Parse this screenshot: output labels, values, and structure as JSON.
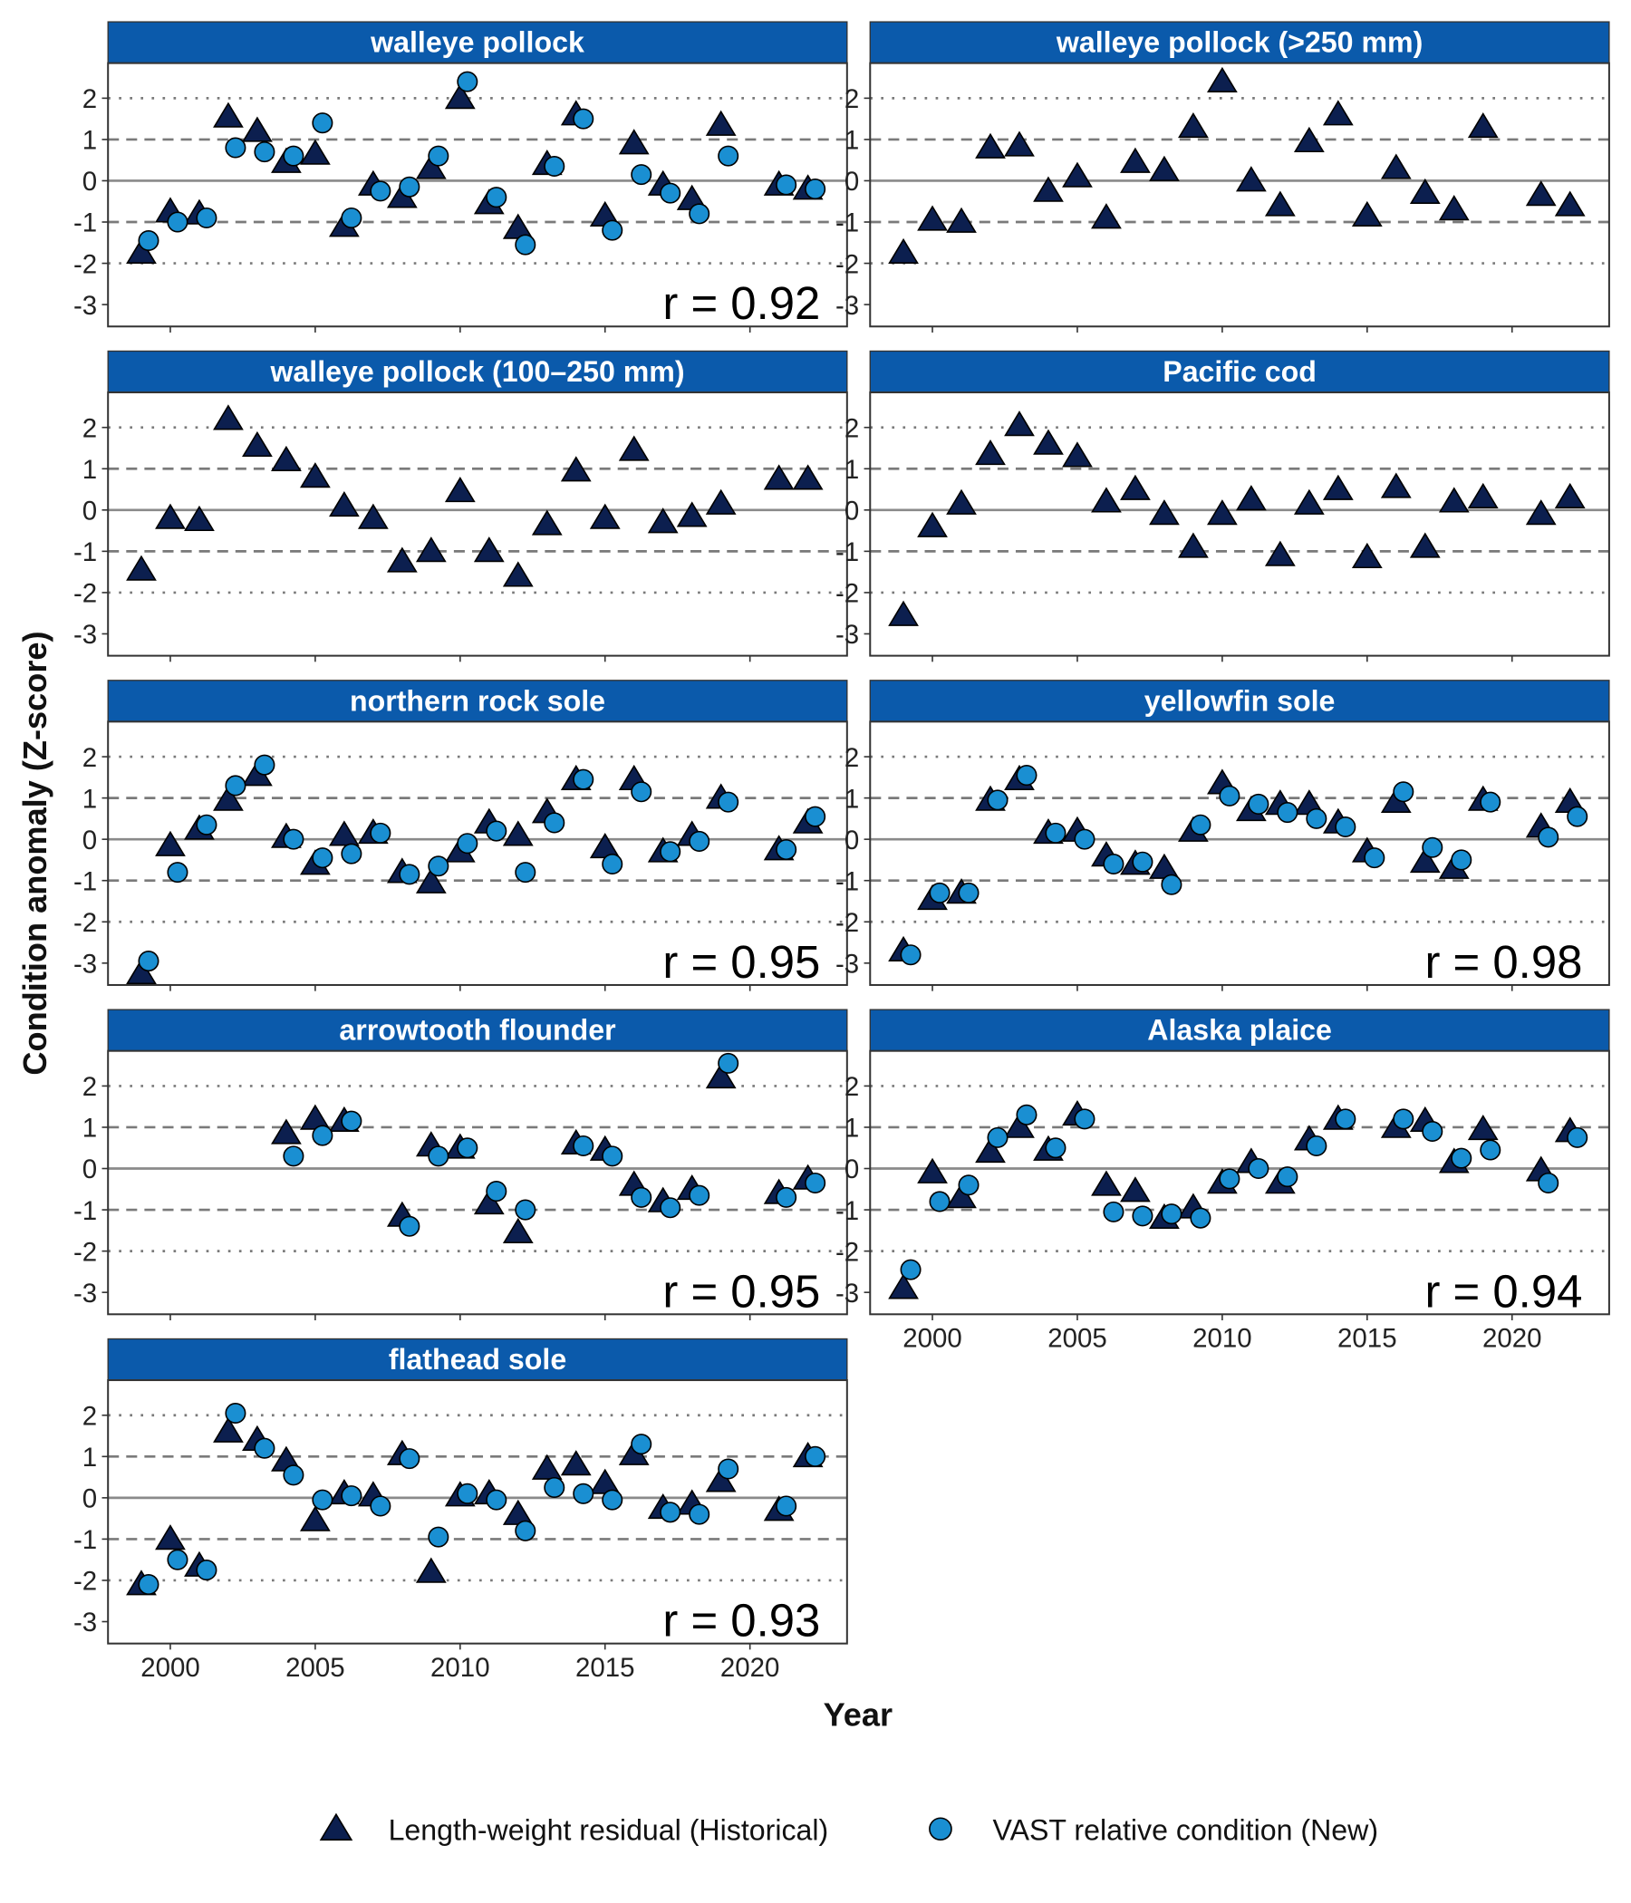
{
  "shared": {
    "ylabel": "Condition anomaly (Z-score)",
    "xlabel": "Year",
    "xlim": [
      1997.85,
      2023.35
    ],
    "xticks": [
      2000,
      2005,
      2010,
      2015,
      2020
    ],
    "ylim": [
      -3.53,
      2.85
    ],
    "yticks": [
      -3,
      -2,
      -1,
      0,
      1,
      2
    ],
    "reference_lines": [
      {
        "value": 0,
        "style": "solid"
      },
      {
        "value": 1,
        "style": "dashed"
      },
      {
        "value": -1,
        "style": "dashed"
      },
      {
        "value": 2,
        "style": "dotted"
      },
      {
        "value": -2,
        "style": "dotted"
      }
    ],
    "legend_position": "bottom",
    "strip_color": "#0b5aab"
  },
  "chart_data": [
    {
      "type": "scatter",
      "title": "walleye pollock",
      "annotation": "r = 0.92",
      "x": [
        1999,
        2000,
        2001,
        2002,
        2003,
        2004,
        2005,
        2006,
        2007,
        2008,
        2009,
        2010,
        2011,
        2012,
        2013,
        2014,
        2015,
        2016,
        2017,
        2018,
        2019,
        2021,
        2022
      ],
      "series": [
        {
          "name": "Length-weight residual (Historical)",
          "marker": "triangle",
          "color": "#0c1f4f",
          "values": [
            -1.75,
            -0.75,
            -0.8,
            1.55,
            1.2,
            0.45,
            0.65,
            -1.1,
            -0.1,
            -0.4,
            0.3,
            2.0,
            -0.55,
            -1.15,
            0.4,
            1.6,
            -0.85,
            0.9,
            -0.1,
            -0.45,
            1.35,
            -0.1,
            -0.2
          ]
        },
        {
          "name": "VAST relative condition (New)",
          "marker": "circle",
          "color": "#1a8fd2",
          "values": [
            -1.45,
            -1.0,
            -0.9,
            0.8,
            0.7,
            0.6,
            1.4,
            -0.9,
            -0.25,
            -0.15,
            0.6,
            2.4,
            -0.4,
            -1.55,
            0.35,
            1.5,
            -1.2,
            0.15,
            -0.3,
            -0.8,
            0.6,
            -0.1,
            -0.2
          ]
        }
      ]
    },
    {
      "type": "scatter",
      "title": "walleye pollock (>250 mm)",
      "x": [
        1999,
        2000,
        2001,
        2002,
        2003,
        2004,
        2005,
        2006,
        2007,
        2008,
        2009,
        2010,
        2011,
        2012,
        2013,
        2014,
        2015,
        2016,
        2017,
        2018,
        2019,
        2021,
        2022
      ],
      "series": [
        {
          "name": "Length-weight residual (Historical)",
          "marker": "triangle",
          "color": "#0c1f4f",
          "values": [
            -1.75,
            -0.95,
            -1.0,
            0.8,
            0.85,
            -0.25,
            0.1,
            -0.9,
            0.45,
            0.25,
            1.3,
            2.4,
            0,
            -0.6,
            0.95,
            1.6,
            -0.85,
            0.3,
            -0.3,
            -0.7,
            1.3,
            -0.35,
            -0.6
          ]
        }
      ]
    },
    {
      "type": "scatter",
      "title": "walleye pollock (100–250 mm)",
      "x": [
        1999,
        2000,
        2001,
        2002,
        2003,
        2004,
        2005,
        2006,
        2007,
        2008,
        2009,
        2010,
        2011,
        2012,
        2013,
        2014,
        2015,
        2016,
        2017,
        2018,
        2019,
        2021,
        2022
      ],
      "series": [
        {
          "name": "Length-weight residual (Historical)",
          "marker": "triangle",
          "color": "#0c1f4f",
          "values": [
            -1.45,
            -0.2,
            -0.25,
            2.2,
            1.55,
            1.2,
            0.8,
            0.1,
            -0.2,
            -1.25,
            -1.0,
            0.45,
            -1.0,
            -1.6,
            -0.35,
            0.95,
            -0.2,
            1.45,
            -0.3,
            -0.15,
            0.15,
            0.75,
            0.75
          ]
        }
      ]
    },
    {
      "type": "scatter",
      "title": "Pacific cod",
      "x": [
        1999,
        2000,
        2001,
        2002,
        2003,
        2004,
        2005,
        2006,
        2007,
        2008,
        2009,
        2010,
        2011,
        2012,
        2013,
        2014,
        2015,
        2016,
        2017,
        2018,
        2019,
        2021,
        2022
      ],
      "series": [
        {
          "name": "Length-weight residual (Historical)",
          "marker": "triangle",
          "color": "#0c1f4f",
          "values": [
            -2.55,
            -0.4,
            0.15,
            1.35,
            2.05,
            1.6,
            1.3,
            0.2,
            0.5,
            -0.1,
            -0.9,
            -0.1,
            0.25,
            -1.1,
            0.15,
            0.5,
            -1.15,
            0.55,
            -0.9,
            0.2,
            0.3,
            -0.1,
            0.3
          ]
        }
      ]
    },
    {
      "type": "scatter",
      "title": "northern rock sole",
      "annotation": "r = 0.95",
      "x": [
        1999,
        2000,
        2001,
        2002,
        2003,
        2004,
        2005,
        2006,
        2007,
        2008,
        2009,
        2010,
        2011,
        2012,
        2013,
        2014,
        2015,
        2016,
        2017,
        2018,
        2019,
        2021,
        2022
      ],
      "series": [
        {
          "name": "Length-weight residual (Historical)",
          "marker": "triangle",
          "color": "#0c1f4f",
          "values": [
            -3.25,
            -0.15,
            0.25,
            0.95,
            1.55,
            0.05,
            -0.6,
            0.1,
            0.15,
            -0.8,
            -1.05,
            -0.3,
            0.4,
            0.1,
            0.65,
            1.45,
            -0.2,
            1.45,
            -0.3,
            0.1,
            1.0,
            -0.25,
            0.4
          ]
        },
        {
          "name": "VAST relative condition (New)",
          "marker": "circle",
          "color": "#1a8fd2",
          "values": [
            -2.95,
            -0.8,
            0.35,
            1.3,
            1.8,
            0,
            -0.45,
            -0.35,
            0.15,
            -0.85,
            -0.65,
            -0.1,
            0.2,
            -0.8,
            0.4,
            1.45,
            -0.6,
            1.15,
            -0.3,
            -0.05,
            0.9,
            -0.25,
            0.55
          ]
        }
      ]
    },
    {
      "type": "scatter",
      "title": "yellowfin sole",
      "annotation": "r = 0.98",
      "x": [
        1999,
        2000,
        2001,
        2002,
        2003,
        2004,
        2005,
        2006,
        2007,
        2008,
        2009,
        2010,
        2011,
        2012,
        2013,
        2014,
        2015,
        2016,
        2017,
        2018,
        2019,
        2021,
        2022
      ],
      "series": [
        {
          "name": "Length-weight residual (Historical)",
          "marker": "triangle",
          "color": "#0c1f4f",
          "values": [
            -2.7,
            -1.45,
            -1.3,
            0.95,
            1.45,
            0.15,
            0.2,
            -0.4,
            -0.6,
            -0.7,
            0.2,
            1.35,
            0.7,
            0.85,
            0.85,
            0.4,
            -0.3,
            0.9,
            -0.55,
            -0.7,
            0.95,
            0.3,
            0.9
          ]
        },
        {
          "name": "VAST relative condition (New)",
          "marker": "circle",
          "color": "#1a8fd2",
          "values": [
            -2.8,
            -1.3,
            -1.3,
            0.95,
            1.55,
            0.15,
            0,
            -0.6,
            -0.55,
            -1.1,
            0.35,
            1.05,
            0.85,
            0.65,
            0.5,
            0.3,
            -0.45,
            1.15,
            -0.2,
            -0.5,
            0.9,
            0.05,
            0.55
          ]
        }
      ]
    },
    {
      "type": "scatter",
      "title": "arrowtooth flounder",
      "annotation": "r = 0.95",
      "x": [
        2004,
        2005,
        2006,
        2008,
        2009,
        2010,
        2011,
        2012,
        2014,
        2015,
        2016,
        2017,
        2018,
        2019,
        2021,
        2022
      ],
      "series": [
        {
          "name": "Length-weight residual (Historical)",
          "marker": "triangle",
          "color": "#0c1f4f",
          "values": [
            0.85,
            1.2,
            1.15,
            -1.15,
            0.55,
            0.5,
            -0.85,
            -1.55,
            0.6,
            0.45,
            -0.4,
            -0.8,
            -0.5,
            2.2,
            -0.6,
            -0.25
          ]
        },
        {
          "name": "VAST relative condition (New)",
          "marker": "circle",
          "color": "#1a8fd2",
          "values": [
            0.3,
            0.8,
            1.15,
            -1.4,
            0.3,
            0.5,
            -0.55,
            -1.0,
            0.55,
            0.3,
            -0.7,
            -0.95,
            -0.65,
            2.55,
            -0.7,
            -0.35
          ]
        }
      ]
    },
    {
      "type": "scatter",
      "title": "Alaska plaice",
      "annotation": "r = 0.94",
      "x": [
        1999,
        2000,
        2001,
        2002,
        2003,
        2004,
        2005,
        2006,
        2007,
        2008,
        2009,
        2010,
        2011,
        2012,
        2013,
        2014,
        2016,
        2017,
        2018,
        2019,
        2021,
        2022
      ],
      "series": [
        {
          "name": "Length-weight residual (Historical)",
          "marker": "triangle",
          "color": "#0c1f4f",
          "values": [
            -2.9,
            -0.1,
            -0.7,
            0.4,
            1.0,
            0.45,
            1.3,
            -0.4,
            -0.55,
            -1.2,
            -0.95,
            -0.35,
            0.15,
            -0.35,
            0.7,
            1.2,
            1.0,
            1.15,
            0.15,
            0.95,
            -0.05,
            0.9
          ]
        },
        {
          "name": "VAST relative condition (New)",
          "marker": "circle",
          "color": "#1a8fd2",
          "values": [
            -2.45,
            -0.8,
            -0.4,
            0.75,
            1.3,
            0.5,
            1.2,
            -1.05,
            -1.15,
            -1.1,
            -1.2,
            -0.25,
            0,
            -0.2,
            0.55,
            1.2,
            1.2,
            0.9,
            0.25,
            0.45,
            -0.35,
            0.75
          ]
        }
      ]
    },
    {
      "type": "scatter",
      "title": "flathead sole",
      "annotation": "r = 0.93",
      "x": [
        1999,
        2000,
        2001,
        2002,
        2003,
        2004,
        2005,
        2006,
        2007,
        2008,
        2009,
        2010,
        2011,
        2012,
        2013,
        2014,
        2015,
        2016,
        2017,
        2018,
        2019,
        2021,
        2022
      ],
      "series": [
        {
          "name": "Length-weight residual (Historical)",
          "marker": "triangle",
          "color": "#0c1f4f",
          "values": [
            -2.1,
            -1.0,
            -1.65,
            1.6,
            1.4,
            0.9,
            -0.55,
            0.1,
            0.05,
            1.05,
            -1.8,
            0.05,
            0.1,
            -0.4,
            0.7,
            0.8,
            0.35,
            1.05,
            -0.25,
            -0.15,
            0.4,
            -0.3,
            1.0
          ]
        },
        {
          "name": "VAST relative condition (New)",
          "marker": "circle",
          "color": "#1a8fd2",
          "values": [
            -2.1,
            -1.5,
            -1.75,
            2.05,
            1.2,
            0.55,
            -0.05,
            0.05,
            -0.2,
            0.95,
            -0.95,
            0.1,
            -0.05,
            -0.8,
            0.25,
            0.1,
            -0.05,
            1.3,
            -0.35,
            -0.4,
            0.7,
            -0.2,
            1.0
          ]
        }
      ]
    }
  ]
}
